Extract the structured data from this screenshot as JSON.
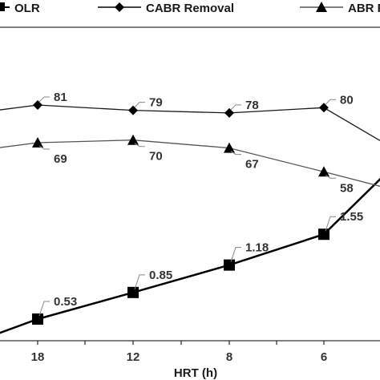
{
  "chart_data": {
    "type": "line",
    "xlabel": "HRT (h)",
    "categories": [
      "",
      "18",
      "12",
      "8",
      "6",
      ""
    ],
    "legend": {
      "position": "top",
      "entries": [
        "OLR",
        "CABR Removal",
        "ABR Rem"
      ]
    },
    "series": [
      {
        "name": "OLR",
        "marker": "square",
        "color": "#000000",
        "values": [
          0.35,
          0.53,
          0.85,
          1.18,
          1.55,
          2.4
        ],
        "labels": [
          "",
          "0.53",
          "0.85",
          "1.18",
          "1.55",
          ""
        ]
      },
      {
        "name": "CABR Removal",
        "marker": "diamond",
        "color": "#1a1a1a",
        "values": [
          79,
          81,
          79,
          78,
          80,
          64
        ],
        "labels": [
          "",
          "81",
          "79",
          "78",
          "80",
          ""
        ]
      },
      {
        "name": "ABR Rem",
        "marker": "triangle",
        "color": "#555555",
        "values": [
          67,
          69,
          70,
          67,
          58,
          51
        ],
        "labels": [
          "",
          "69",
          "70",
          "67",
          "58",
          ""
        ]
      }
    ],
    "grid": false
  }
}
